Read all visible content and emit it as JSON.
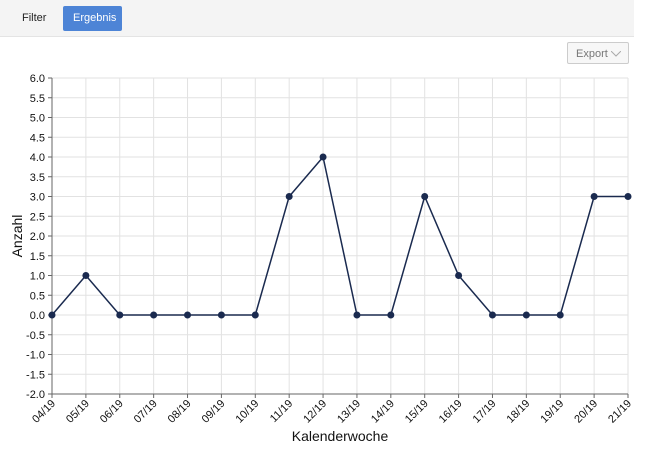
{
  "ui": {
    "tabs": [
      "Filter",
      "Ergebnis"
    ],
    "export": "Export"
  },
  "chart_data": {
    "type": "line",
    "xlabel": "Kalenderwoche",
    "ylabel": "Anzahl",
    "categories": [
      "04/19",
      "05/19",
      "06/19",
      "07/19",
      "08/19",
      "09/19",
      "10/19",
      "11/19",
      "12/19",
      "13/19",
      "14/19",
      "15/19",
      "16/19",
      "17/19",
      "18/19",
      "19/19",
      "20/19",
      "21/19"
    ],
    "values": [
      0,
      1,
      0,
      0,
      0,
      0,
      0,
      3,
      4,
      0,
      0,
      3,
      1,
      0,
      0,
      0,
      3,
      3
    ],
    "color": "#1a2a4f",
    "ylim": [
      -2,
      6
    ],
    "yticks": [
      {
        "value": -2,
        "label": "-2.0"
      },
      -1.5,
      {
        "value": -1,
        "label": "-1.0"
      },
      -0.5,
      {
        "value": 0,
        "label": "0.0"
      },
      0.5,
      {
        "value": 1,
        "label": "1.0"
      },
      1.5,
      {
        "value": 2,
        "label": "2.0"
      },
      2.5,
      {
        "value": 3,
        "label": "3.0"
      },
      3.5,
      {
        "value": 4,
        "label": "4.0"
      },
      4.5,
      {
        "value": 5,
        "label": "5.0"
      },
      5.5,
      {
        "value": 6,
        "label": "6.0"
      }
    ],
    "grid": true
  }
}
